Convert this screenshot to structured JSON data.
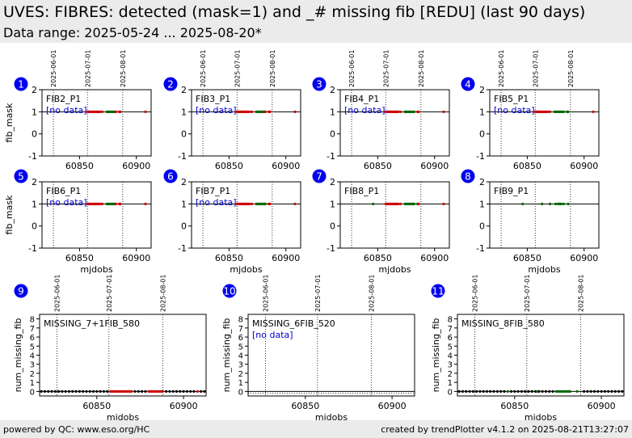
{
  "header": {
    "title": "UVES: FIBRES: detected (mask=1) and _# missing fib [REDU] (last 90 days)",
    "subtitle": "Data range: 2025-05-24 ... 2025-08-20*"
  },
  "footer": {
    "left": "powered by QC: www.eso.org/HC",
    "right": "created by trendPlotter v4.1.2 on 2025-08-21T13:27:07"
  },
  "colors": {
    "badge": "#0000ee",
    "nodata": "#0000cc",
    "red_points": "#cc0000",
    "green_points": "#006600",
    "black_points": "#000000"
  },
  "date_markers": [
    {
      "label": "2025-06-01",
      "mjd": 60827
    },
    {
      "label": "2025-07-01",
      "mjd": 60857
    },
    {
      "label": "2025-08-01",
      "mjd": 60888
    }
  ],
  "chart_data": [
    {
      "panel": "1",
      "type": "scatter",
      "label": "FIB2_P1",
      "nodata": "[no data]",
      "ylabel": "fib_mask",
      "xlabel": "",
      "xlim": [
        60817,
        60913
      ],
      "ylim": [
        -1,
        2
      ],
      "yticks": [
        -1,
        0,
        1,
        2
      ],
      "xticks": [
        60850,
        60900
      ],
      "hline": 1,
      "series": [
        {
          "color": "red",
          "x": [
            60857,
            60858,
            60859,
            60860,
            60861,
            60862,
            60863,
            60864,
            60865,
            60866,
            60867,
            60868,
            60870,
            60881,
            60882,
            60885,
            60886,
            60908
          ],
          "y": [
            1,
            1,
            1,
            1,
            1,
            1,
            1,
            1,
            1,
            1,
            1,
            1,
            1,
            1,
            1,
            1,
            1,
            1
          ]
        },
        {
          "color": "green",
          "x": [
            60874,
            60875,
            60876,
            60877,
            60878,
            60879,
            60880
          ],
          "y": [
            1,
            1,
            1,
            1,
            1,
            1,
            1
          ]
        }
      ]
    },
    {
      "panel": "2",
      "type": "scatter",
      "label": "FIB3_P1",
      "nodata": "[no data]",
      "ylabel": "",
      "xlabel": "",
      "xlim": [
        60817,
        60913
      ],
      "ylim": [
        -1,
        2
      ],
      "yticks": [
        -1,
        0,
        1,
        2
      ],
      "xticks": [
        60850,
        60900
      ],
      "hline": 1,
      "series": [
        {
          "color": "red",
          "x": [
            60857,
            60858,
            60859,
            60860,
            60861,
            60862,
            60863,
            60864,
            60865,
            60866,
            60867,
            60868,
            60870,
            60881,
            60882,
            60885,
            60886,
            60908
          ],
          "y": [
            1,
            1,
            1,
            1,
            1,
            1,
            1,
            1,
            1,
            1,
            1,
            1,
            1,
            1,
            1,
            1,
            1,
            1
          ]
        },
        {
          "color": "green",
          "x": [
            60874,
            60875,
            60876,
            60877,
            60878,
            60879,
            60880
          ],
          "y": [
            1,
            1,
            1,
            1,
            1,
            1,
            1
          ]
        }
      ]
    },
    {
      "panel": "3",
      "type": "scatter",
      "label": "FIB4_P1",
      "nodata": "[no data]",
      "ylabel": "",
      "xlabel": "",
      "xlim": [
        60817,
        60913
      ],
      "ylim": [
        -1,
        2
      ],
      "yticks": [
        -1,
        0,
        1,
        2
      ],
      "xticks": [
        60850,
        60900
      ],
      "hline": 1,
      "series": [
        {
          "color": "red",
          "x": [
            60857,
            60858,
            60859,
            60860,
            60861,
            60862,
            60863,
            60864,
            60865,
            60866,
            60867,
            60868,
            60870,
            60885,
            60886,
            60908
          ],
          "y": [
            1,
            1,
            1,
            1,
            1,
            1,
            1,
            1,
            1,
            1,
            1,
            1,
            1,
            1,
            1,
            1
          ]
        },
        {
          "color": "green",
          "x": [
            60874,
            60875,
            60876,
            60877,
            60878,
            60879,
            60880,
            60881,
            60882
          ],
          "y": [
            1,
            1,
            1,
            1,
            1,
            1,
            1,
            1,
            1
          ]
        }
      ]
    },
    {
      "panel": "4",
      "type": "scatter",
      "label": "FIB5_P1",
      "nodata": "[no data]",
      "ylabel": "",
      "xlabel": "",
      "xlim": [
        60817,
        60913
      ],
      "ylim": [
        -1,
        2
      ],
      "yticks": [
        -1,
        0,
        1,
        2
      ],
      "xticks": [
        60850,
        60900
      ],
      "hline": 1,
      "series": [
        {
          "color": "red",
          "x": [
            60857,
            60858,
            60859,
            60860,
            60861,
            60862,
            60863,
            60864,
            60865,
            60866,
            60867,
            60868,
            60870,
            60908
          ],
          "y": [
            1,
            1,
            1,
            1,
            1,
            1,
            1,
            1,
            1,
            1,
            1,
            1,
            1,
            1
          ]
        },
        {
          "color": "green",
          "x": [
            60874,
            60875,
            60876,
            60877,
            60878,
            60879,
            60880,
            60881,
            60882,
            60885,
            60886
          ],
          "y": [
            1,
            1,
            1,
            1,
            1,
            1,
            1,
            1,
            1,
            1,
            1
          ]
        }
      ]
    },
    {
      "panel": "5",
      "type": "scatter",
      "label": "FIB6_P1",
      "nodata": "[no data]",
      "ylabel": "fib_mask",
      "xlabel": "mjdobs",
      "xlim": [
        60817,
        60913
      ],
      "ylim": [
        -1,
        2
      ],
      "yticks": [
        -1,
        0,
        1,
        2
      ],
      "xticks": [
        60850,
        60900
      ],
      "hline": 1,
      "series": [
        {
          "color": "red",
          "x": [
            60857,
            60858,
            60859,
            60860,
            60861,
            60862,
            60863,
            60864,
            60865,
            60866,
            60867,
            60868,
            60870,
            60881,
            60882,
            60885,
            60886,
            60908
          ],
          "y": [
            1,
            1,
            1,
            1,
            1,
            1,
            1,
            1,
            1,
            1,
            1,
            1,
            1,
            1,
            1,
            1,
            1,
            1
          ]
        },
        {
          "color": "green",
          "x": [
            60874,
            60875,
            60876,
            60877,
            60878,
            60879,
            60880
          ],
          "y": [
            1,
            1,
            1,
            1,
            1,
            1,
            1
          ]
        }
      ]
    },
    {
      "panel": "6",
      "type": "scatter",
      "label": "FIB7_P1",
      "nodata": "[no data]",
      "ylabel": "",
      "xlabel": "mjdobs",
      "xlim": [
        60817,
        60913
      ],
      "ylim": [
        -1,
        2
      ],
      "yticks": [
        -1,
        0,
        1,
        2
      ],
      "xticks": [
        60850,
        60900
      ],
      "hline": 1,
      "series": [
        {
          "color": "red",
          "x": [
            60857,
            60858,
            60859,
            60860,
            60861,
            60862,
            60863,
            60864,
            60865,
            60866,
            60867,
            60868,
            60870,
            60885,
            60886,
            60908
          ],
          "y": [
            1,
            1,
            1,
            1,
            1,
            1,
            1,
            1,
            1,
            1,
            1,
            1,
            1,
            1,
            1,
            1
          ]
        },
        {
          "color": "green",
          "x": [
            60874,
            60875,
            60876,
            60877,
            60878,
            60879,
            60880,
            60881,
            60882
          ],
          "y": [
            1,
            1,
            1,
            1,
            1,
            1,
            1,
            1,
            1
          ]
        }
      ]
    },
    {
      "panel": "7",
      "type": "scatter",
      "label": "FIB8_P1",
      "nodata": "",
      "ylabel": "",
      "xlabel": "mjdobs",
      "xlim": [
        60817,
        60913
      ],
      "ylim": [
        -1,
        2
      ],
      "yticks": [
        -1,
        0,
        1,
        2
      ],
      "xticks": [
        60850,
        60900
      ],
      "hline": 1,
      "series": [
        {
          "color": "green",
          "x": [
            60846,
            60874,
            60875,
            60876,
            60877,
            60878,
            60879,
            60880,
            60881,
            60882,
            60885
          ],
          "y": [
            1,
            1,
            1,
            1,
            1,
            1,
            1,
            1,
            1,
            1,
            1
          ]
        },
        {
          "color": "red",
          "x": [
            60857,
            60858,
            60859,
            60860,
            60861,
            60862,
            60863,
            60864,
            60865,
            60866,
            60867,
            60868,
            60870,
            60886,
            60908
          ],
          "y": [
            1,
            1,
            1,
            1,
            1,
            1,
            1,
            1,
            1,
            1,
            1,
            1,
            1,
            1,
            1
          ]
        }
      ]
    },
    {
      "panel": "8",
      "type": "scatter",
      "label": "FIB9_P1",
      "nodata": "",
      "ylabel": "",
      "xlabel": "mjdobs",
      "xlim": [
        60817,
        60913
      ],
      "ylim": [
        -1,
        2
      ],
      "yticks": [
        -1,
        0,
        1,
        2
      ],
      "xticks": [
        60850,
        60900
      ],
      "hline": 1,
      "series": [
        {
          "color": "green",
          "x": [
            60846,
            60863,
            60870,
            60875,
            60877,
            60878,
            60879,
            60880,
            60882,
            60886
          ],
          "y": [
            1,
            1,
            1,
            1,
            1,
            1,
            1,
            1,
            1,
            1
          ]
        }
      ]
    },
    {
      "panel": "9",
      "type": "scatter",
      "label": "MISSING_7+1FIB_580",
      "nodata": "",
      "ylabel": "num_missing_fib",
      "xlabel": "mjdobs",
      "xlim": [
        60817,
        60913
      ],
      "ylim": [
        -0.5,
        8.5
      ],
      "yticks": [
        0,
        1,
        2,
        3,
        4,
        5,
        6,
        7,
        8
      ],
      "xticks": [
        60850,
        60900
      ],
      "hline": 0,
      "series": [
        {
          "color": "black",
          "x": [
            60818,
            60820,
            60822,
            60824,
            60826,
            60828,
            60830,
            60832,
            60834,
            60836,
            60838,
            60840,
            60842,
            60844,
            60846,
            60848,
            60850,
            60852,
            60854,
            60856,
            60872,
            60874,
            60876,
            60878,
            60890,
            60892,
            60894,
            60896,
            60898,
            60900,
            60902,
            60904,
            60906,
            60910,
            60912
          ],
          "y": [
            0,
            0,
            0,
            0,
            0,
            0,
            0,
            0,
            0,
            0,
            0,
            0,
            0,
            0,
            0,
            0,
            0,
            0,
            0,
            0,
            0,
            0,
            0,
            0,
            0,
            0,
            0,
            0,
            0,
            0,
            0,
            0,
            0,
            0,
            0
          ]
        },
        {
          "color": "red",
          "x": [
            60858,
            60859,
            60860,
            60861,
            60862,
            60863,
            60864,
            60865,
            60866,
            60867,
            60868,
            60869,
            60870,
            60880,
            60881,
            60882,
            60883,
            60884,
            60885,
            60886,
            60887,
            60888,
            60908
          ],
          "y": [
            0,
            0,
            0,
            0,
            0,
            0,
            0,
            0,
            0,
            0,
            0,
            0,
            0,
            0,
            0,
            0,
            0,
            0,
            0,
            0,
            0,
            0,
            0
          ]
        }
      ]
    },
    {
      "panel": "10",
      "type": "scatter",
      "label": "MISSING_6FIB_520",
      "nodata": "[no data]",
      "ylabel": "num_missing_fib",
      "xlabel": "mjdobs",
      "xlim": [
        60817,
        60913
      ],
      "ylim": [
        -0.5,
        8.5
      ],
      "yticks": [
        0,
        1,
        2,
        3,
        4,
        5,
        6,
        7,
        8
      ],
      "xticks": [
        60850,
        60900
      ],
      "hline": 0,
      "series": []
    },
    {
      "panel": "11",
      "type": "scatter",
      "label": "MISSING_8FIB_580",
      "nodata": "",
      "ylabel": "num_missing_fib",
      "xlabel": "mjdobs",
      "xlim": [
        60817,
        60913
      ],
      "ylim": [
        -0.5,
        8.5
      ],
      "yticks": [
        0,
        1,
        2,
        3,
        4,
        5,
        6,
        7,
        8
      ],
      "xticks": [
        60850,
        60900
      ],
      "hline": 0,
      "series": [
        {
          "color": "black",
          "x": [
            60818,
            60820,
            60822,
            60824,
            60826,
            60828,
            60830,
            60832,
            60834,
            60836,
            60838,
            60840,
            60842,
            60844,
            60848,
            60850,
            60852,
            60854,
            60856,
            60858,
            60860,
            60862,
            60864,
            60866,
            60868,
            60870,
            60872,
            60890,
            60892,
            60894,
            60896,
            60898,
            60900,
            60902,
            60904,
            60906,
            60908,
            60910,
            60912
          ],
          "y": [
            0,
            0,
            0,
            0,
            0,
            0,
            0,
            0,
            0,
            0,
            0,
            0,
            0,
            0,
            0,
            0,
            0,
            0,
            0,
            0,
            0,
            0,
            0,
            0,
            0,
            0,
            0,
            0,
            0,
            0,
            0,
            0,
            0,
            0,
            0,
            0,
            0,
            0,
            0
          ]
        },
        {
          "color": "green",
          "x": [
            60846,
            60863,
            60874,
            60875,
            60876,
            60877,
            60878,
            60879,
            60880,
            60881,
            60882,
            60886
          ],
          "y": [
            0,
            0,
            0,
            0,
            0,
            0,
            0,
            0,
            0,
            0,
            0,
            0
          ]
        }
      ]
    }
  ]
}
